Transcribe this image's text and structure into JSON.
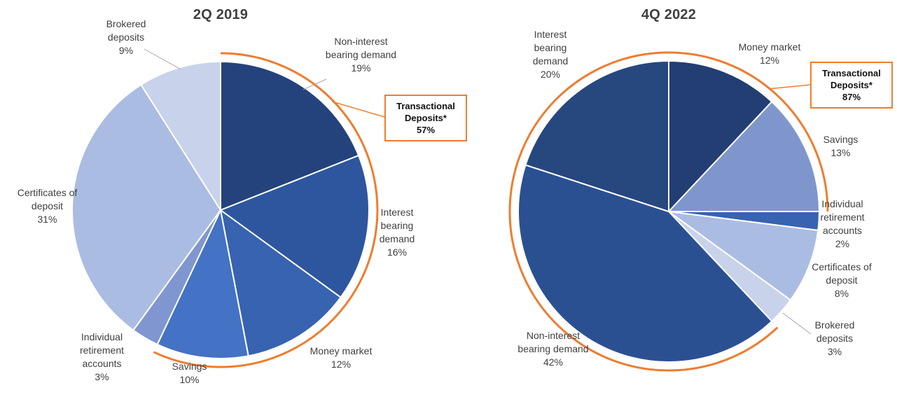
{
  "figure": {
    "background": "#FFFFFF",
    "accent_orange": "#ED7D31",
    "leader_line_color": "#A6A6A6",
    "text_color": "#404040"
  },
  "chart_data": [
    {
      "type": "pie",
      "title": "2Q 2019",
      "categories": [
        "Non-interest bearing demand",
        "Interest bearing demand",
        "Money market",
        "Savings",
        "Individual retirement accounts",
        "Certificates of deposit",
        "Brokered deposits"
      ],
      "values": [
        19,
        16,
        12,
        10,
        3,
        31,
        9
      ],
      "labels_display": [
        "19%",
        "16%",
        "12%",
        "10%",
        "3%",
        "31%",
        "9%"
      ],
      "colors": [
        "#24437C",
        "#2D569E",
        "#3763B0",
        "#4472C4",
        "#8096D0",
        "#ABBCE2",
        "#C9D2EB"
      ],
      "start_angle_deg": 0,
      "direction": "clockwise",
      "slice_border_color": "#FFFFFF",
      "legend": "none",
      "callout": {
        "label": "Transactional Deposits*",
        "display": "57%",
        "value": 57,
        "includes": [
          "Non-interest bearing demand",
          "Interest bearing demand",
          "Money market",
          "Savings"
        ],
        "arc_segments_pct": [
          [
            0,
            57
          ]
        ],
        "color": "#ED7D31"
      }
    },
    {
      "type": "pie",
      "title": "4Q 2022",
      "categories": [
        "Money market",
        "Savings",
        "Individual retirement accounts",
        "Certificates of deposit",
        "Brokered deposits",
        "Non-interest bearing demand",
        "Interest bearing demand"
      ],
      "values": [
        12,
        13,
        2,
        8,
        3,
        42,
        20
      ],
      "labels_display": [
        "12%",
        "13%",
        "2%",
        "8%",
        "3%",
        "42%",
        "20%"
      ],
      "colors": [
        "#223E73",
        "#7E96CC",
        "#3763B0",
        "#ABBCE2",
        "#C9D2EB",
        "#2B5092",
        "#27477F"
      ],
      "start_angle_deg": 0,
      "direction": "clockwise",
      "slice_border_color": "#FFFFFF",
      "legend": "none",
      "callout": {
        "label": "Transactional Deposits*",
        "display": "87%",
        "value": 87,
        "includes": [
          "Money market",
          "Savings",
          "Non-interest bearing demand",
          "Interest bearing demand"
        ],
        "arc_segments_pct": [
          [
            0,
            25
          ],
          [
            38,
            100
          ]
        ],
        "color": "#ED7D31"
      }
    }
  ]
}
